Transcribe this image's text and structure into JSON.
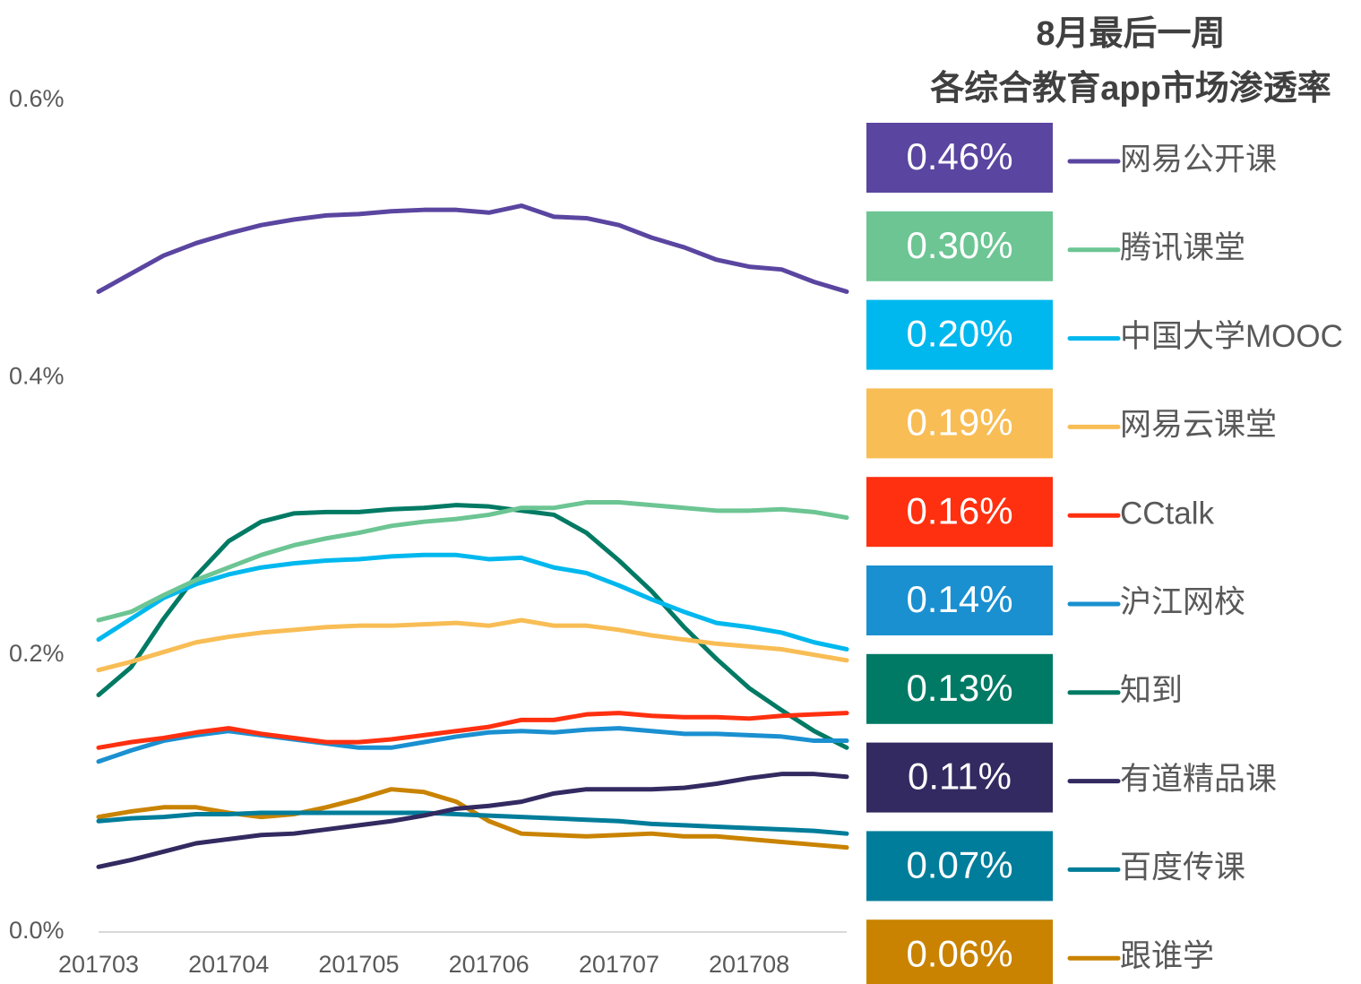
{
  "chart_data": {
    "type": "line",
    "title": "8月最后一周",
    "subtitle": "各综合教育app市场渗透率",
    "categories": [
      "201703",
      null,
      null,
      null,
      "201704",
      null,
      null,
      null,
      "201705",
      null,
      null,
      null,
      "201706",
      null,
      null,
      null,
      "201707",
      null,
      null,
      null,
      "201708",
      null,
      null,
      null
    ],
    "ylim": [
      0,
      0.6
    ],
    "yticks": [
      {
        "value": 0,
        "label": "0.0%"
      },
      {
        "value": 0.2,
        "label": "0.2%"
      },
      {
        "value": 0.4,
        "label": "0.4%"
      },
      {
        "value": 0.6,
        "label": "0.6%"
      }
    ],
    "series": [
      {
        "name": "网易公开课",
        "color": "#5a45a0",
        "latest": 0.46,
        "latest_label": "0.46%",
        "values": [
          0.462,
          0.475,
          0.488,
          0.497,
          0.504,
          0.51,
          0.514,
          0.517,
          0.518,
          0.52,
          0.521,
          0.521,
          0.519,
          0.524,
          0.516,
          0.515,
          0.51,
          0.501,
          0.494,
          0.485,
          0.48,
          0.478,
          0.469,
          0.462
        ]
      },
      {
        "name": "腾讯课堂",
        "color": "#6cc593",
        "latest": 0.3,
        "latest_label": "0.30%",
        "values": [
          0.225,
          0.231,
          0.243,
          0.254,
          0.263,
          0.272,
          0.279,
          0.284,
          0.288,
          0.293,
          0.296,
          0.298,
          0.301,
          0.306,
          0.306,
          0.31,
          0.31,
          0.308,
          0.306,
          0.304,
          0.304,
          0.305,
          0.303,
          0.299
        ]
      },
      {
        "name": "中国大学MOOC",
        "color": "#00b8ee",
        "latest": 0.2,
        "latest_label": "0.20%",
        "values": [
          0.211,
          0.226,
          0.241,
          0.251,
          0.258,
          0.263,
          0.266,
          0.268,
          0.269,
          0.271,
          0.272,
          0.272,
          0.269,
          0.27,
          0.263,
          0.259,
          0.25,
          0.24,
          0.231,
          0.223,
          0.22,
          0.216,
          0.209,
          0.204
        ]
      },
      {
        "name": "网易云课堂",
        "color": "#f8bd55",
        "latest": 0.19,
        "latest_label": "0.19%",
        "values": [
          0.189,
          0.195,
          0.202,
          0.209,
          0.213,
          0.216,
          0.218,
          0.22,
          0.221,
          0.221,
          0.222,
          0.223,
          0.221,
          0.225,
          0.221,
          0.221,
          0.218,
          0.214,
          0.211,
          0.208,
          0.206,
          0.204,
          0.2,
          0.196
        ]
      },
      {
        "name": "CCtalk",
        "color": "#ff3010",
        "latest": 0.16,
        "latest_label": "0.16%",
        "values": [
          0.133,
          0.137,
          0.14,
          0.144,
          0.147,
          0.143,
          0.14,
          0.137,
          0.137,
          0.139,
          0.142,
          0.145,
          0.148,
          0.153,
          0.153,
          0.157,
          0.158,
          0.156,
          0.155,
          0.155,
          0.154,
          0.156,
          0.157,
          0.158
        ]
      },
      {
        "name": "沪江网校",
        "color": "#1a90d0",
        "latest": 0.14,
        "latest_label": "0.14%",
        "values": [
          0.123,
          0.131,
          0.138,
          0.142,
          0.145,
          0.142,
          0.139,
          0.136,
          0.133,
          0.133,
          0.137,
          0.141,
          0.144,
          0.145,
          0.144,
          0.146,
          0.147,
          0.145,
          0.143,
          0.143,
          0.142,
          0.141,
          0.138,
          0.138
        ]
      },
      {
        "name": "知到",
        "color": "#007a64",
        "latest": 0.13,
        "latest_label": "0.13%",
        "values": [
          0.171,
          0.191,
          0.226,
          0.257,
          0.282,
          0.296,
          0.302,
          0.303,
          0.303,
          0.305,
          0.306,
          0.308,
          0.307,
          0.304,
          0.301,
          0.288,
          0.268,
          0.246,
          0.22,
          0.197,
          0.176,
          0.16,
          0.145,
          0.133
        ]
      },
      {
        "name": "有道精品课",
        "color": "#322a60",
        "latest": 0.11,
        "latest_label": "0.11%",
        "values": [
          0.047,
          0.052,
          0.058,
          0.064,
          0.067,
          0.07,
          0.071,
          0.074,
          0.077,
          0.08,
          0.084,
          0.089,
          0.091,
          0.094,
          0.1,
          0.103,
          0.103,
          0.103,
          0.104,
          0.107,
          0.111,
          0.114,
          0.114,
          0.112
        ]
      },
      {
        "name": "百度传课",
        "color": "#007d9a",
        "latest": 0.07,
        "latest_label": "0.07%",
        "values": [
          0.08,
          0.082,
          0.083,
          0.085,
          0.085,
          0.086,
          0.086,
          0.086,
          0.086,
          0.086,
          0.086,
          0.085,
          0.084,
          0.083,
          0.082,
          0.081,
          0.08,
          0.078,
          0.077,
          0.076,
          0.075,
          0.074,
          0.073,
          0.071
        ]
      },
      {
        "name": "跟谁学",
        "color": "#c98300",
        "latest": 0.06,
        "latest_label": "0.06%",
        "values": [
          0.083,
          0.087,
          0.09,
          0.09,
          0.086,
          0.083,
          0.085,
          0.09,
          0.096,
          0.103,
          0.101,
          0.094,
          0.08,
          0.071,
          0.07,
          0.069,
          0.07,
          0.071,
          0.069,
          0.069,
          0.067,
          0.065,
          0.063,
          0.061
        ]
      }
    ]
  }
}
